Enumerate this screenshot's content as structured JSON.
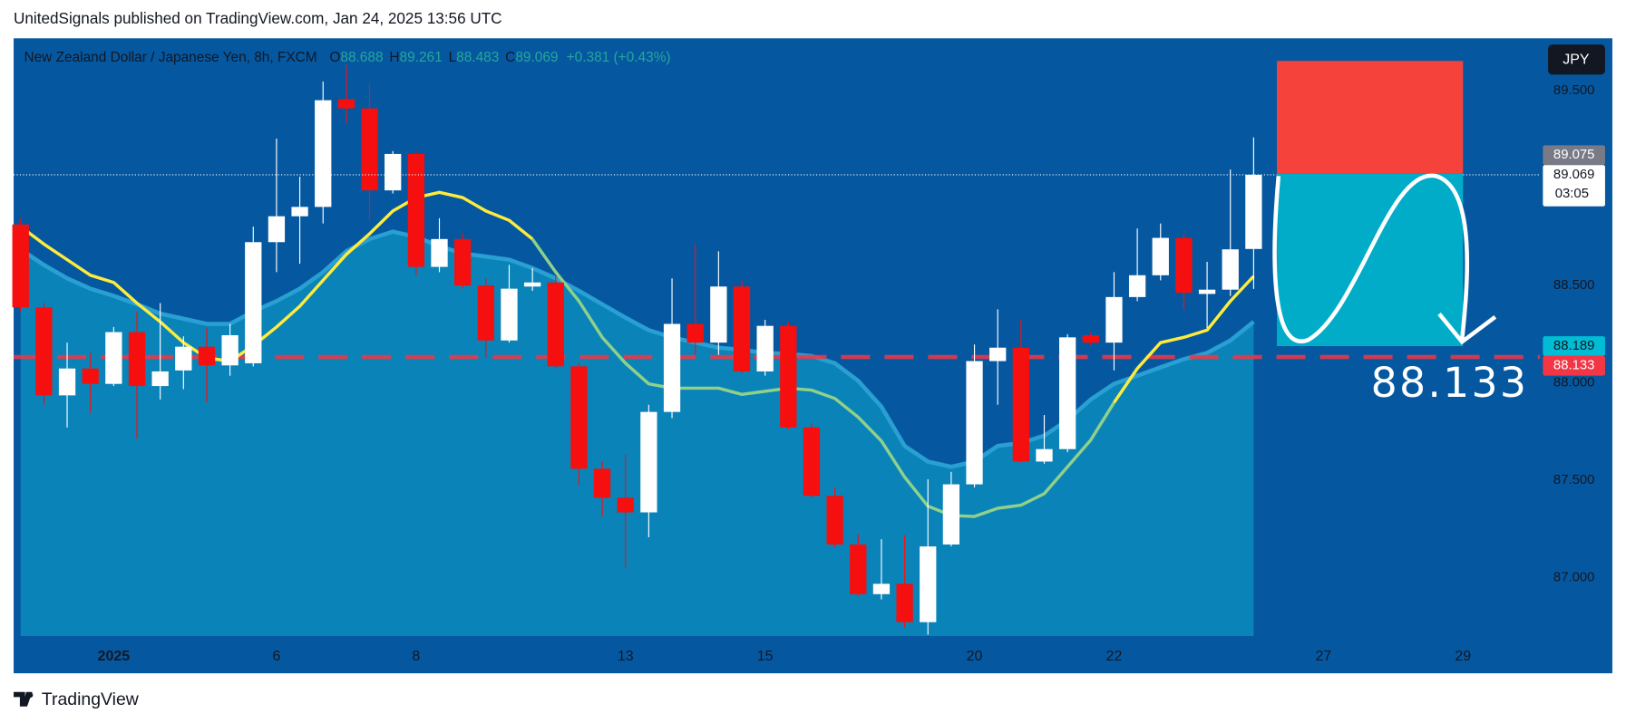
{
  "published": "UnitedSignals published on TradingView.com, Jan 24, 2025 13:56 UTC",
  "brand": "TradingView",
  "chart_data": {
    "type": "candlestick",
    "symbol": "New Zealand Dollar / Japanese Yen, 8h, FXCM",
    "ohlc_header": [
      {
        "label": "O",
        "value": 88.688
      },
      {
        "label": "H",
        "value": 89.261
      },
      {
        "label": "L",
        "value": 88.483
      },
      {
        "label": "C",
        "value": 89.069
      }
    ],
    "change": "+0.381 (+0.43%)",
    "currency": "JPY",
    "countdown": "03:05",
    "xlim": [
      -0.3,
      65.3
    ],
    "ylim": [
      86.7,
      89.77
    ],
    "xticks": [
      {
        "value": 4,
        "label": "2025"
      },
      {
        "value": 11,
        "label": "6"
      },
      {
        "value": 17,
        "label": "8"
      },
      {
        "value": 26,
        "label": "13"
      },
      {
        "value": 32,
        "label": "15"
      },
      {
        "value": 41,
        "label": "20"
      },
      {
        "value": 47,
        "label": "22"
      },
      {
        "value": 56,
        "label": "27"
      },
      {
        "value": 62,
        "label": "29"
      }
    ],
    "yticks": [
      {
        "value": 87,
        "label": "87.000"
      },
      {
        "value": 87.5,
        "label": "87.500"
      },
      {
        "value": 88,
        "label": "88.000"
      },
      {
        "value": 88.5,
        "label": "88.500"
      },
      {
        "value": 89.5,
        "label": "89.500"
      }
    ],
    "up_color": "#ffffff",
    "down_color": "#f50f0f",
    "open": [
      88.814,
      88.388,
      87.936,
      88.074,
      87.995,
      88.261,
      87.984,
      88.064,
      88.186,
      88.09,
      88.101,
      88.723,
      88.856,
      88.904,
      89.457,
      89.41,
      88.989,
      89.176,
      88.596,
      88.739,
      88.5,
      88.218,
      88.495,
      88.516,
      88.085,
      87.559,
      87.41,
      87.335,
      87.851,
      88.303,
      88.207,
      88.495,
      88.059,
      88.293,
      87.771,
      87.42,
      87.17,
      86.915,
      86.968,
      86.771,
      87.17,
      87.479,
      88.112,
      88.181,
      87.596,
      87.66,
      88.245,
      88.207,
      88.441,
      88.553,
      88.745,
      88.457,
      88.479,
      88.688
    ],
    "high": [
      88.846,
      88.41,
      88.207,
      88.154,
      88.287,
      88.367,
      88.41,
      88.239,
      88.282,
      88.303,
      88.803,
      89.255,
      89.059,
      89.548,
      89.633,
      89.537,
      89.191,
      89.191,
      88.846,
      88.766,
      88.537,
      88.606,
      88.59,
      88.553,
      88.101,
      87.596,
      87.633,
      87.888,
      88.537,
      88.713,
      88.676,
      88.527,
      88.324,
      88.314,
      87.793,
      87.463,
      87.223,
      87.197,
      87.218,
      87.505,
      87.543,
      88.197,
      88.378,
      88.324,
      87.835,
      88.25,
      88.261,
      88.569,
      88.793,
      88.819,
      88.766,
      88.622,
      89.096,
      89.261
    ],
    "low": [
      88.367,
      87.888,
      87.771,
      87.846,
      87.984,
      87.713,
      87.915,
      87.968,
      87.899,
      88.037,
      88.085,
      88.569,
      88.612,
      88.819,
      89.335,
      88.835,
      88.973,
      88.553,
      88.569,
      88.484,
      88.128,
      88.207,
      88.473,
      88.074,
      87.473,
      87.314,
      87.048,
      87.207,
      87.819,
      88.144,
      88.144,
      88.048,
      88.037,
      87.761,
      87.41,
      87.154,
      86.904,
      86.888,
      86.745,
      86.707,
      87.16,
      87.463,
      87.888,
      87.59,
      87.585,
      87.644,
      88.191,
      88.064,
      88.42,
      88.527,
      88.378,
      88.282,
      88.447,
      88.483
    ],
    "close": [
      88.388,
      87.936,
      88.074,
      87.995,
      88.261,
      87.984,
      88.059,
      88.186,
      88.09,
      88.245,
      88.723,
      88.856,
      88.904,
      89.452,
      89.41,
      88.989,
      89.176,
      88.596,
      88.739,
      88.5,
      88.218,
      88.484,
      88.516,
      88.085,
      87.559,
      87.41,
      87.335,
      87.851,
      88.303,
      88.207,
      88.495,
      88.059,
      88.293,
      87.771,
      87.42,
      87.17,
      86.915,
      86.968,
      86.771,
      87.16,
      87.479,
      88.112,
      88.181,
      87.596,
      87.66,
      88.234,
      88.207,
      88.441,
      88.553,
      88.745,
      88.463,
      88.479,
      88.686,
      89.069
    ],
    "ma": {
      "values": [
        88.803,
        88.713,
        88.633,
        88.553,
        88.516,
        88.41,
        88.314,
        88.207,
        88.128,
        88.112,
        88.191,
        88.287,
        88.394,
        88.527,
        88.66,
        88.766,
        88.883,
        88.952,
        88.979,
        88.952,
        88.883,
        88.835,
        88.739,
        88.569,
        88.42,
        88.234,
        88.101,
        87.995,
        87.973,
        87.973,
        87.973,
        87.941,
        87.957,
        87.973,
        87.963,
        87.92,
        87.824,
        87.702,
        87.516,
        87.367,
        87.319,
        87.314,
        87.356,
        87.372,
        87.431,
        87.569,
        87.707,
        87.899,
        88.074,
        88.207,
        88.234,
        88.271,
        88.42,
        88.548
      ],
      "colors": [
        "#ffeb3b",
        "#ffeb3b",
        "#ffeb3b",
        "#ffeb3b",
        "#ffeb3b",
        "#ffeb3b",
        "#ffeb3b",
        "#ffeb3b",
        "#ffeb3b",
        "#ffeb3b",
        "#ffeb3b",
        "#ffeb3b",
        "#ffeb3b",
        "#ffeb3b",
        "#ffeb3b",
        "#ffeb3b",
        "#ffeb3b",
        "#ffeb3b",
        "#ffeb3b",
        "#ffeb3b",
        "#ffeb3b",
        "#ffeb3b",
        "#ffeb3b",
        "#8fd18a",
        "#8fd18a",
        "#8fd18a",
        "#8fd18a",
        "#8fd18a",
        "#8fd18a",
        "#8fd18a",
        "#8fd18a",
        "#8fd18a",
        "#8fd18a",
        "#8fd18a",
        "#8fd18a",
        "#8fd18a",
        "#8fd18a",
        "#8fd18a",
        "#8fd18a",
        "#8fd18a",
        "#8fd18a",
        "#8fd18a",
        "#8fd18a",
        "#8fd18a",
        "#8fd18a",
        "#8fd18a",
        "#8fd18a",
        "#8fd18a",
        "#ffeb3b",
        "#ffeb3b",
        "#ffeb3b",
        "#ffeb3b",
        "#ffeb3b",
        "#ffeb3b"
      ]
    },
    "slow": {
      "color": "#0a83b8",
      "values": [
        88.686,
        88.606,
        88.537,
        88.484,
        88.447,
        88.404,
        88.356,
        88.33,
        88.303,
        88.303,
        88.367,
        88.42,
        88.484,
        88.569,
        88.676,
        88.739,
        88.777,
        88.75,
        88.702,
        88.665,
        88.649,
        88.633,
        88.59,
        88.537,
        88.473,
        88.404,
        88.335,
        88.271,
        88.234,
        88.207,
        88.181,
        88.17,
        88.154,
        88.149,
        88.138,
        88.101,
        88.011,
        87.878,
        87.676,
        87.596,
        87.569,
        87.596,
        87.676,
        87.691,
        87.729,
        87.809,
        87.915,
        87.995,
        88.037,
        88.08,
        88.122,
        88.154,
        88.218,
        88.314
      ]
    },
    "position": {
      "start": 54,
      "end": 62,
      "entry": 89.075,
      "stop": 89.654,
      "target": 88.189,
      "stop_color": "#f5433b",
      "target_color": "#00acc8"
    },
    "target_line": {
      "value": 88.133,
      "label": "88.133",
      "color": "#f23645"
    },
    "price_labels": [
      {
        "value": 89.069,
        "label": "89.069",
        "bg": "#ffffff",
        "fg": "#131722"
      },
      {
        "value": 89.075,
        "label": "89.075",
        "bg": "#787b86",
        "fg": "#ffffff"
      },
      {
        "value": 88.189,
        "label": "88.189",
        "bg": "#00bcd4",
        "fg": "#131722"
      },
      {
        "value": 88.133,
        "label": "88.133",
        "bg": "#f23645",
        "fg": "#ffffff"
      }
    ]
  }
}
